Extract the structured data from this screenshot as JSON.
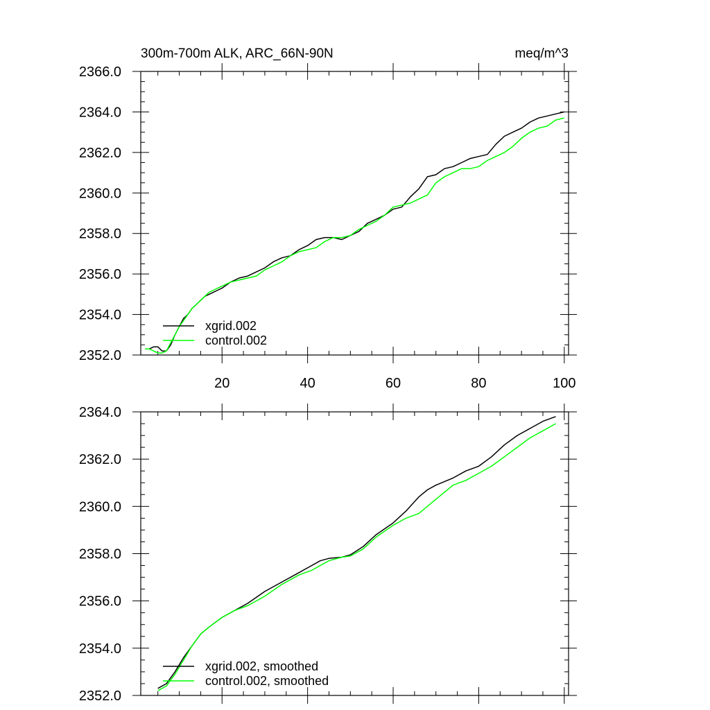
{
  "chart_data": [
    {
      "type": "line",
      "title": "300m-700m ALK, ARC_66N-90N",
      "units": "meq/m^3",
      "xlabel": "",
      "ylabel": "",
      "xlim": [
        1,
        101
      ],
      "ylim": [
        2352.0,
        2366.0
      ],
      "x_ticks": [
        20,
        40,
        60,
        80,
        100
      ],
      "x_tick_labels": [
        "20",
        "40",
        "60",
        "80",
        "100"
      ],
      "y_ticks": [
        2352.0,
        2354.0,
        2356.0,
        2358.0,
        2360.0,
        2362.0,
        2364.0,
        2366.0
      ],
      "y_tick_labels": [
        "2352.0",
        "2354.0",
        "2356.0",
        "2358.0",
        "2360.0",
        "2362.0",
        "2364.0",
        "2366.0"
      ],
      "grid": false,
      "legend_position": "bottom-left",
      "series": [
        {
          "name": "xgrid.002",
          "color": "#000000",
          "x": [
            2,
            3,
            4,
            5,
            6,
            7,
            8,
            9,
            10,
            11,
            12,
            13,
            14,
            15,
            16,
            17,
            18,
            19,
            20,
            22,
            24,
            26,
            28,
            30,
            32,
            34,
            36,
            38,
            40,
            42,
            44,
            46,
            48,
            50,
            52,
            54,
            56,
            58,
            60,
            62,
            64,
            66,
            68,
            70,
            72,
            74,
            76,
            78,
            80,
            82,
            84,
            86,
            88,
            90,
            92,
            94,
            96,
            98,
            100
          ],
          "values": [
            2352.3,
            2352.3,
            2352.4,
            2352.4,
            2352.2,
            2352.2,
            2352.5,
            2353.0,
            2353.4,
            2353.8,
            2354.0,
            2354.3,
            2354.5,
            2354.7,
            2354.9,
            2355.0,
            2355.1,
            2355.2,
            2355.3,
            2355.6,
            2355.8,
            2355.9,
            2356.1,
            2356.3,
            2356.6,
            2356.8,
            2356.9,
            2357.2,
            2357.4,
            2357.7,
            2357.8,
            2357.8,
            2357.7,
            2357.9,
            2358.1,
            2358.5,
            2358.7,
            2358.9,
            2359.2,
            2359.3,
            2359.8,
            2360.2,
            2360.8,
            2360.9,
            2361.2,
            2361.3,
            2361.5,
            2361.7,
            2361.8,
            2361.9,
            2362.4,
            2362.8,
            2363.0,
            2363.2,
            2363.5,
            2363.7,
            2363.8,
            2363.9,
            2364.0
          ]
        },
        {
          "name": "control.002",
          "color": "#00ff00",
          "x": [
            2,
            3,
            4,
            5,
            6,
            7,
            8,
            9,
            10,
            11,
            12,
            13,
            14,
            15,
            16,
            17,
            18,
            19,
            20,
            22,
            24,
            26,
            28,
            30,
            32,
            34,
            36,
            38,
            40,
            42,
            44,
            46,
            48,
            50,
            52,
            54,
            56,
            58,
            60,
            62,
            64,
            66,
            68,
            70,
            72,
            74,
            76,
            78,
            80,
            82,
            84,
            86,
            88,
            90,
            92,
            94,
            96,
            98,
            100
          ],
          "values": [
            2352.3,
            2352.3,
            2352.2,
            2352.1,
            2352.1,
            2352.2,
            2352.6,
            2353.0,
            2353.4,
            2353.7,
            2354.0,
            2354.3,
            2354.5,
            2354.7,
            2354.9,
            2355.1,
            2355.2,
            2355.3,
            2355.4,
            2355.6,
            2355.7,
            2355.8,
            2355.9,
            2356.2,
            2356.4,
            2356.6,
            2356.9,
            2357.1,
            2357.2,
            2357.3,
            2357.6,
            2357.8,
            2357.8,
            2357.9,
            2358.2,
            2358.4,
            2358.6,
            2358.9,
            2359.3,
            2359.4,
            2359.5,
            2359.7,
            2359.9,
            2360.5,
            2360.8,
            2361.0,
            2361.2,
            2361.2,
            2361.3,
            2361.6,
            2361.8,
            2362.0,
            2362.3,
            2362.7,
            2363.0,
            2363.2,
            2363.3,
            2363.6,
            2363.7
          ]
        }
      ]
    },
    {
      "type": "line",
      "title": "",
      "units": "",
      "xlabel": "",
      "ylabel": "",
      "xlim": [
        1,
        101
      ],
      "ylim": [
        2352.0,
        2364.0
      ],
      "x_ticks": [
        20,
        40,
        60,
        80,
        100
      ],
      "x_tick_labels": [],
      "y_ticks": [
        2352.0,
        2354.0,
        2356.0,
        2358.0,
        2360.0,
        2362.0,
        2364.0
      ],
      "y_tick_labels": [
        "2352.0",
        "2354.0",
        "2356.0",
        "2358.0",
        "2360.0",
        "2362.0",
        "2364.0"
      ],
      "grid": false,
      "legend_position": "bottom-left",
      "series": [
        {
          "name": "xgrid.002, smoothed",
          "color": "#000000",
          "x": [
            5,
            7,
            9,
            11,
            13,
            15,
            17,
            20,
            23,
            26,
            30,
            34,
            38,
            41,
            43,
            45,
            48,
            50,
            53,
            56,
            60,
            63,
            66,
            68,
            70,
            74,
            77,
            80,
            83,
            86,
            89,
            92,
            95,
            98
          ],
          "values": [
            2352.3,
            2352.5,
            2353.0,
            2353.6,
            2354.1,
            2354.6,
            2354.9,
            2355.3,
            2355.6,
            2355.9,
            2356.4,
            2356.8,
            2357.2,
            2357.5,
            2357.7,
            2357.8,
            2357.85,
            2357.95,
            2358.3,
            2358.8,
            2359.3,
            2359.8,
            2360.4,
            2360.7,
            2360.9,
            2361.2,
            2361.5,
            2361.7,
            2362.1,
            2362.6,
            2363.0,
            2363.3,
            2363.6,
            2363.8
          ]
        },
        {
          "name": "control.002, smoothed",
          "color": "#00ff00",
          "x": [
            5,
            7,
            9,
            11,
            13,
            15,
            17,
            20,
            23,
            26,
            30,
            34,
            38,
            41,
            43,
            45,
            48,
            50,
            53,
            56,
            60,
            63,
            66,
            68,
            70,
            74,
            77,
            80,
            83,
            86,
            89,
            92,
            95,
            98
          ],
          "values": [
            2352.2,
            2352.4,
            2352.9,
            2353.5,
            2354.1,
            2354.6,
            2354.9,
            2355.3,
            2355.6,
            2355.8,
            2356.2,
            2356.7,
            2357.1,
            2357.3,
            2357.5,
            2357.7,
            2357.85,
            2357.9,
            2358.2,
            2358.7,
            2359.2,
            2359.5,
            2359.7,
            2360.0,
            2360.3,
            2360.9,
            2361.1,
            2361.4,
            2361.7,
            2362.1,
            2362.5,
            2362.9,
            2363.2,
            2363.5
          ]
        }
      ]
    }
  ]
}
